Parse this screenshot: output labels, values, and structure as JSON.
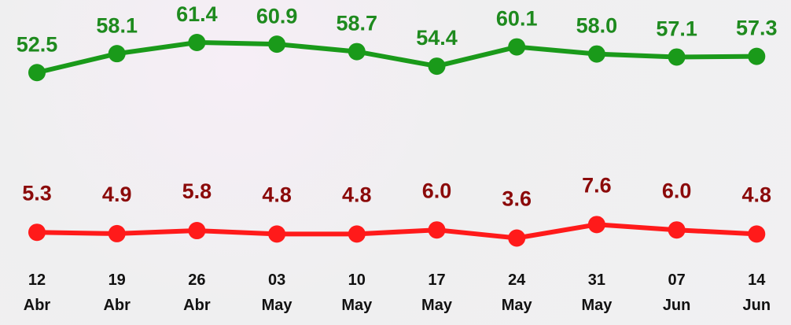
{
  "chart_data": {
    "type": "line",
    "categories": [
      "12\nAbr",
      "19\nAbr",
      "26\nAbr",
      "03\nMay",
      "10\nMay",
      "17\nMay",
      "24\nMay",
      "31\nMay",
      "07\nJun",
      "14\nJun"
    ],
    "series": [
      {
        "color": "#1a9a1a",
        "label_color": "#1e8a1e",
        "values": [
          52.5,
          58.1,
          61.4,
          60.9,
          58.7,
          54.4,
          60.1,
          58.0,
          57.1,
          57.3
        ],
        "value_labels": [
          "52.5",
          "58.1",
          "61.4",
          "60.9",
          "58.7",
          "54.4",
          "60.1",
          "58.0",
          "57.1",
          "57.3"
        ]
      },
      {
        "color": "#ff1a1a",
        "label_color": "#8b0a0a",
        "values": [
          5.3,
          4.9,
          5.8,
          4.8,
          4.8,
          6.0,
          3.6,
          7.6,
          6.0,
          4.8
        ],
        "value_labels": [
          "5.3",
          "4.9",
          "5.8",
          "4.8",
          "4.8",
          "6.0",
          "3.6",
          "7.6",
          "6.0",
          "4.8"
        ]
      }
    ]
  }
}
